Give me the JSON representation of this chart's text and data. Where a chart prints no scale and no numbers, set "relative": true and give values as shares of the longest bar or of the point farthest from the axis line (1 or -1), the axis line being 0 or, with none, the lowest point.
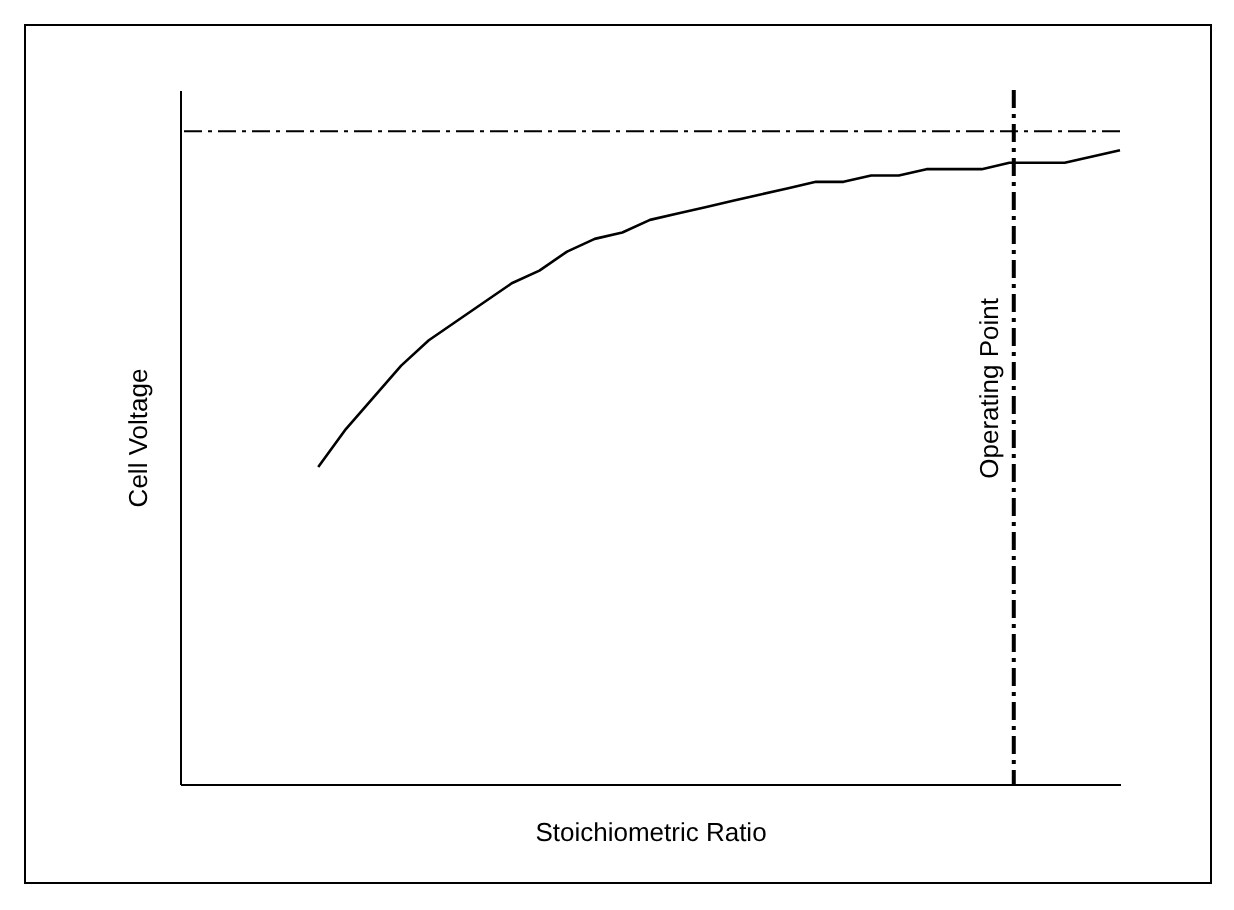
{
  "chart_data": {
    "type": "line",
    "relative": true,
    "xlabel": "Stoichiometric Ratio",
    "ylabel": "Cell Voltage",
    "categories": [
      null,
      null,
      null,
      null,
      null,
      null,
      null,
      null,
      null,
      null,
      null,
      null,
      null,
      null,
      null,
      null,
      null,
      null,
      null,
      null,
      null,
      null,
      null,
      null,
      null,
      null,
      null,
      null,
      null,
      null,
      null,
      null,
      null,
      null,
      null
    ],
    "series": [
      {
        "color": "#000000",
        "values": [
          null,
          null,
          null,
          null,
          null,
          0.5,
          0.56,
          0.61,
          0.66,
          0.7,
          0.73,
          0.76,
          0.79,
          0.81,
          0.84,
          0.86,
          0.87,
          0.89,
          0.9,
          0.91,
          0.92,
          0.93,
          0.94,
          0.95,
          0.95,
          0.96,
          0.96,
          0.97,
          0.97,
          0.97,
          0.98,
          0.98,
          0.98,
          0.99,
          1.0
        ]
      }
    ],
    "ref_lines": [
      {
        "axis": "y",
        "value": 1.03,
        "line_style": "dashed",
        "color": "#000000"
      }
    ],
    "annotations": [
      "Operating Point"
    ],
    "marker": "none",
    "line_style": "solid"
  }
}
